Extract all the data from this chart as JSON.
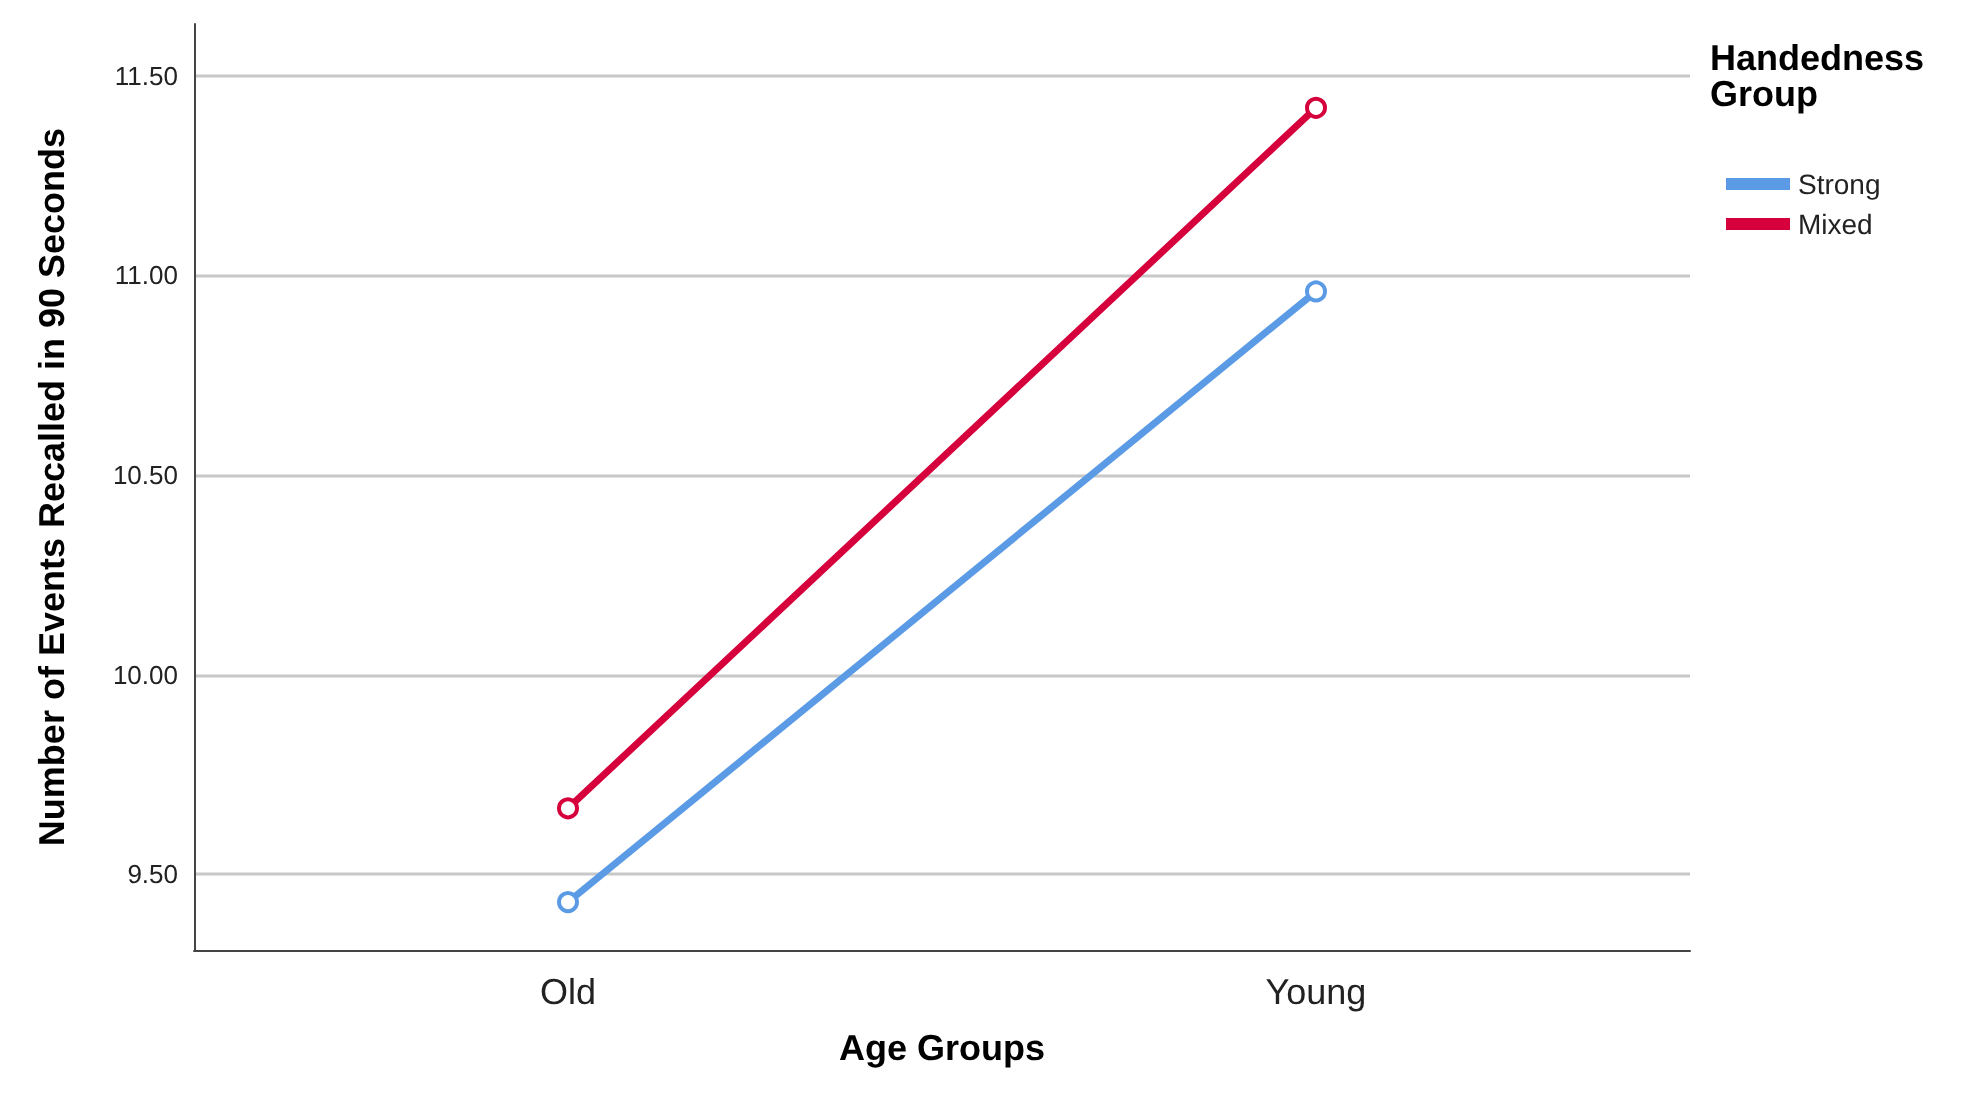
{
  "chart_data": {
    "type": "line",
    "xlabel": "Age Groups",
    "ylabel": "Number of Events Recalled in 90 Seconds",
    "legend_title": "Handedness Group",
    "categories": [
      "Old",
      "Young"
    ],
    "series": [
      {
        "name": "Strong",
        "color": "#5b9be6",
        "values": [
          9.43,
          10.96
        ]
      },
      {
        "name": "Mixed",
        "color": "#d5003c",
        "values": [
          9.665,
          11.42
        ]
      }
    ],
    "ylim": [
      9.31,
      11.63
    ],
    "yticks": [
      {
        "value": 9.5,
        "label": "9.50"
      },
      {
        "value": 10,
        "label": "10.00"
      },
      {
        "value": 10.5,
        "label": "10.50"
      },
      {
        "value": 11,
        "label": "11.00"
      },
      {
        "value": 11.5,
        "label": "11.50"
      }
    ],
    "grid": "y",
    "legend": "top right",
    "marker": "circle",
    "line_style": "solid"
  }
}
